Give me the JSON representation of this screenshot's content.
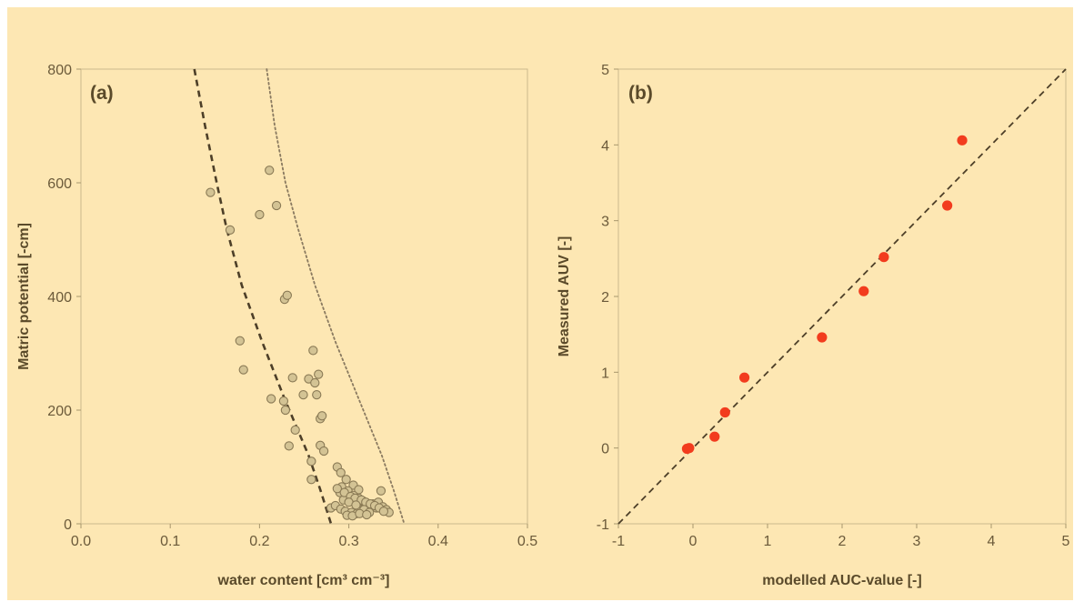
{
  "figure": {
    "background": "#fde7b3"
  },
  "chart_data": [
    {
      "type": "scatter",
      "panel_label": "(a)",
      "title": "",
      "xlabel": "water content [cm³ cm⁻³]",
      "ylabel": "Matric potential [-cm]",
      "xlim": [
        0.0,
        0.5
      ],
      "ylim": [
        0,
        800
      ],
      "x_ticks": [
        0.0,
        0.1,
        0.2,
        0.3,
        0.4,
        0.5
      ],
      "x_tick_labels": [
        "0.0",
        "0.1",
        "0.2",
        "0.3",
        "0.4",
        "0.5"
      ],
      "y_ticks": [
        0,
        200,
        400,
        600,
        800
      ],
      "y_tick_labels": [
        "0",
        "200",
        "400",
        "600",
        "800"
      ],
      "grid": false,
      "colors": {
        "points": "#d3c394",
        "point_edge": "#8a7a55",
        "dashed_curve": "#4d3f28",
        "dotted_curve": "#8a7a60"
      },
      "series": [
        {
          "kind": "points",
          "x": [
            0.145,
            0.167,
            0.178,
            0.182,
            0.2,
            0.211,
            0.219,
            0.228,
            0.231,
            0.213,
            0.227,
            0.229,
            0.233,
            0.237,
            0.24,
            0.249,
            0.255,
            0.258,
            0.26,
            0.262,
            0.264,
            0.266,
            0.268,
            0.27,
            0.268,
            0.272,
            0.258,
            0.287,
            0.291,
            0.297,
            0.305,
            0.311,
            0.29,
            0.299,
            0.294,
            0.301,
            0.28,
            0.285,
            0.291,
            0.296,
            0.303,
            0.309,
            0.313,
            0.318,
            0.322,
            0.327,
            0.333,
            0.338,
            0.342,
            0.336,
            0.345,
            0.292,
            0.299,
            0.305,
            0.311,
            0.316,
            0.321,
            0.326,
            0.331,
            0.287,
            0.295,
            0.302,
            0.307,
            0.314,
            0.319,
            0.324,
            0.329,
            0.334,
            0.339,
            0.3,
            0.308,
            0.317,
            0.323,
            0.298,
            0.304,
            0.312,
            0.32
          ],
          "y": [
            583,
            517,
            322,
            271,
            544,
            622,
            560,
            395,
            402,
            220,
            216,
            200,
            137,
            257,
            165,
            227,
            255,
            110,
            305,
            248,
            227,
            263,
            185,
            190,
            138,
            128,
            78,
            100,
            90,
            78,
            68,
            60,
            55,
            48,
            42,
            40,
            28,
            32,
            26,
            22,
            20,
            18,
            25,
            28,
            30,
            35,
            38,
            30,
            25,
            58,
            20,
            65,
            58,
            50,
            45,
            40,
            35,
            30,
            28,
            62,
            55,
            48,
            45,
            42,
            38,
            35,
            32,
            28,
            22,
            38,
            33,
            25,
            20,
            15,
            14,
            18,
            16
          ]
        },
        {
          "kind": "curve",
          "style": "dashed",
          "x": [
            0.127,
            0.139,
            0.152,
            0.163,
            0.18,
            0.203,
            0.228,
            0.255,
            0.268,
            0.28
          ],
          "y": [
            800,
            700,
            600,
            520,
            420,
            320,
            220,
            120,
            60,
            0
          ]
        },
        {
          "kind": "curve",
          "style": "dotted",
          "x": [
            0.208,
            0.217,
            0.229,
            0.243,
            0.262,
            0.285,
            0.311,
            0.337,
            0.35,
            0.362
          ],
          "y": [
            800,
            700,
            600,
            520,
            420,
            320,
            220,
            120,
            60,
            0
          ]
        }
      ]
    },
    {
      "type": "scatter",
      "panel_label": "(b)",
      "title": "",
      "xlabel": "modelled AUC-value [-]",
      "ylabel": "Measured AUV [-]",
      "xlim": [
        -1,
        5
      ],
      "ylim": [
        -1,
        5
      ],
      "x_ticks": [
        -1,
        0,
        1,
        2,
        3,
        4,
        5
      ],
      "x_tick_labels": [
        "-1",
        "0",
        "1",
        "2",
        "3",
        "4",
        "5"
      ],
      "y_ticks": [
        -1,
        0,
        1,
        2,
        3,
        4,
        5
      ],
      "y_tick_labels": [
        "-1",
        "0",
        "1",
        "2",
        "3",
        "4",
        "5"
      ],
      "grid": false,
      "colors": {
        "points": "#f23c1e",
        "line": "#4d3f28"
      },
      "series": [
        {
          "kind": "points",
          "x": [
            -0.08,
            -0.05,
            0.29,
            0.43,
            0.69,
            1.73,
            2.29,
            2.56,
            3.41,
            3.61
          ],
          "y": [
            -0.01,
            0.0,
            0.15,
            0.47,
            0.93,
            1.46,
            2.07,
            2.52,
            3.2,
            4.06
          ]
        },
        {
          "kind": "line",
          "style": "dashed",
          "x": [
            -1,
            5
          ],
          "y": [
            -1,
            5
          ]
        }
      ]
    }
  ]
}
